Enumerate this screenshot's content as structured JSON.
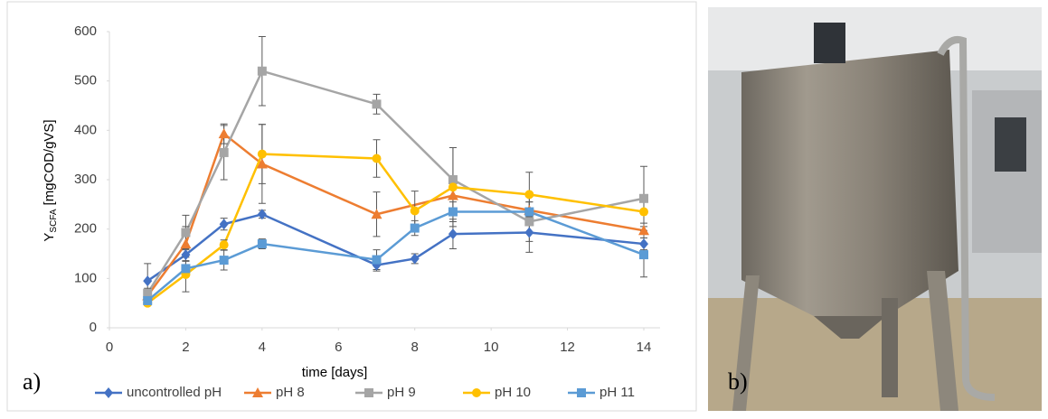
{
  "chart_data": {
    "type": "line",
    "y_label": "Y",
    "y_label_sub": "SCFA",
    "y_label_unit": "[mgCOD/gVS]",
    "x_label": "time [days]",
    "xlim": [
      0,
      14
    ],
    "xticks": [
      0,
      2,
      4,
      6,
      8,
      10,
      12,
      14
    ],
    "ylim": [
      0,
      600
    ],
    "yticks": [
      0,
      100,
      200,
      300,
      400,
      500,
      600
    ],
    "grid": false,
    "legend": "bottom",
    "series": [
      {
        "name": "uncontrolled pH",
        "color": "#4472c4",
        "marker": "diamond",
        "x": [
          1,
          2,
          3,
          4,
          7,
          8,
          9,
          11,
          14
        ],
        "values": [
          95,
          148,
          210,
          230,
          127,
          140,
          190,
          193,
          170
        ],
        "errors": [
          35,
          12,
          12,
          8,
          12,
          10,
          30,
          40,
          12
        ]
      },
      {
        "name": "pH 8",
        "color": "#ed7d31",
        "marker": "triangle",
        "x": [
          1,
          2,
          3,
          4,
          7,
          9,
          11,
          14
        ],
        "values": [
          65,
          170,
          393,
          332,
          230,
          268,
          238,
          197
        ],
        "errors": [
          10,
          35,
          20,
          80,
          45,
          40,
          30,
          15
        ]
      },
      {
        "name": "pH 9",
        "color": "#a5a5a5",
        "marker": "square",
        "x": [
          1,
          2,
          3,
          4,
          7,
          9,
          11,
          14
        ],
        "values": [
          70,
          193,
          355,
          520,
          453,
          300,
          215,
          262
        ],
        "errors": [
          10,
          35,
          55,
          70,
          20,
          65,
          40,
          65
        ]
      },
      {
        "name": "pH 10",
        "color": "#ffc000",
        "marker": "circle",
        "x": [
          1,
          2,
          3,
          4,
          7,
          8,
          9,
          11,
          14
        ],
        "values": [
          50,
          108,
          168,
          352,
          343,
          237,
          285,
          270,
          235
        ],
        "errors": [
          5,
          35,
          10,
          60,
          38,
          40,
          80,
          45,
          30
        ]
      },
      {
        "name": "pH 11",
        "color": "#5b9bd5",
        "marker": "square",
        "x": [
          1,
          2,
          3,
          4,
          7,
          8,
          9,
          11,
          14
        ],
        "values": [
          55,
          120,
          137,
          170,
          138,
          202,
          235,
          235,
          148
        ],
        "errors": [
          8,
          15,
          20,
          10,
          20,
          15,
          20,
          20,
          45
        ]
      }
    ]
  },
  "panel_labels": [
    "a)",
    "b)"
  ]
}
